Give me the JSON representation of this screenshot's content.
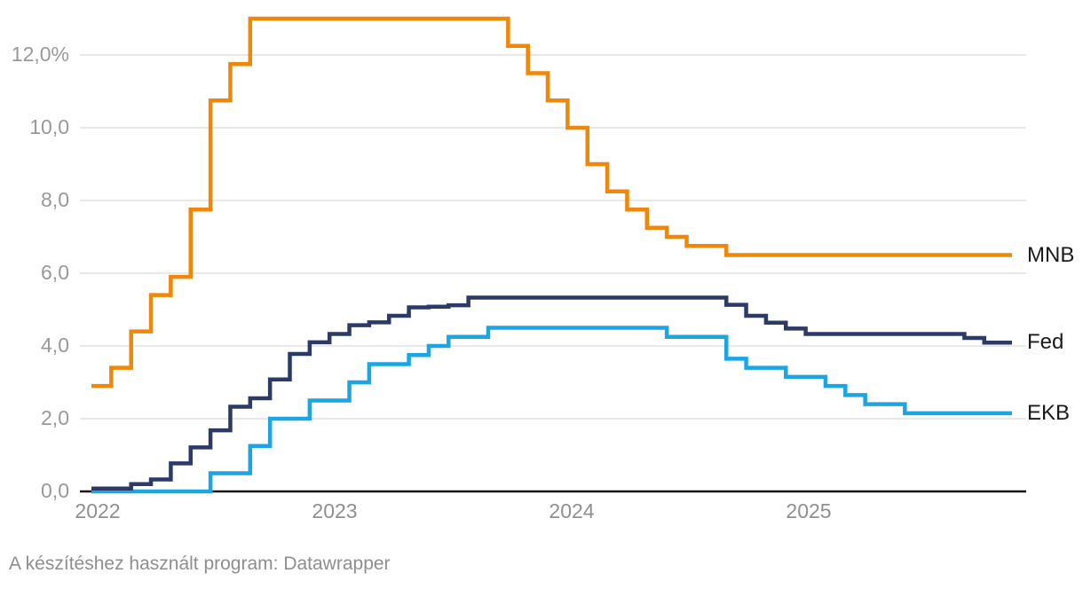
{
  "chart_data": {
    "type": "line",
    "line_style": "step-after",
    "title": "",
    "x_start": "2022-01",
    "x_end": "2025-11",
    "x_frequency": "monthly",
    "x_tick_labels": [
      "2022",
      "2023",
      "2024",
      "2025"
    ],
    "y_tick_labels": [
      "0,0",
      "2,0",
      "4,0",
      "6,0",
      "8,0",
      "10,0",
      "12,0%"
    ],
    "y_tick_values": [
      0,
      2,
      4,
      6,
      8,
      10,
      12
    ],
    "ylim": [
      0,
      13.4
    ],
    "grid": "horizontal",
    "gridline_color": "#e9e9e9",
    "axis_line_color": "#161616",
    "legend_position": "right-edge-labels",
    "series": [
      {
        "name": "MNB",
        "color": "#ef8708",
        "values": [
          2.9,
          3.4,
          4.4,
          5.4,
          5.9,
          7.75,
          10.75,
          11.75,
          13,
          13,
          13,
          13,
          13,
          13,
          13,
          13,
          13,
          13,
          13,
          13,
          13,
          12.25,
          11.5,
          10.75,
          10,
          9,
          8.25,
          7.75,
          7.25,
          7,
          6.75,
          6.75,
          6.5,
          6.5,
          6.5,
          6.5,
          6.5,
          6.5,
          6.5,
          6.5,
          6.5,
          6.5,
          6.5,
          6.5,
          6.5,
          6.5,
          6.5
        ]
      },
      {
        "name": "Fed",
        "color": "#2b3a67",
        "values": [
          0.08,
          0.08,
          0.2,
          0.33,
          0.77,
          1.21,
          1.68,
          2.33,
          2.56,
          3.08,
          3.78,
          4.1,
          4.33,
          4.57,
          4.65,
          4.83,
          5.06,
          5.08,
          5.12,
          5.33,
          5.33,
          5.33,
          5.33,
          5.33,
          5.33,
          5.33,
          5.33,
          5.33,
          5.33,
          5.33,
          5.33,
          5.33,
          5.13,
          4.83,
          4.64,
          4.48,
          4.33,
          4.33,
          4.33,
          4.33,
          4.33,
          4.33,
          4.33,
          4.33,
          4.22,
          4.09,
          4.09
        ]
      },
      {
        "name": "EKB",
        "color": "#1ba6e3",
        "values": [
          0,
          0,
          0,
          0,
          0,
          0,
          0.5,
          0.5,
          1.25,
          2,
          2,
          2.5,
          2.5,
          3,
          3.5,
          3.5,
          3.75,
          4,
          4.25,
          4.25,
          4.5,
          4.5,
          4.5,
          4.5,
          4.5,
          4.5,
          4.5,
          4.5,
          4.5,
          4.25,
          4.25,
          4.25,
          3.65,
          3.4,
          3.4,
          3.15,
          3.15,
          2.9,
          2.65,
          2.4,
          2.4,
          2.15,
          2.15,
          2.15,
          2.15,
          2.15,
          2.15
        ]
      }
    ]
  },
  "footer": {
    "text": "A készítéshez használt program: Datawrapper"
  }
}
